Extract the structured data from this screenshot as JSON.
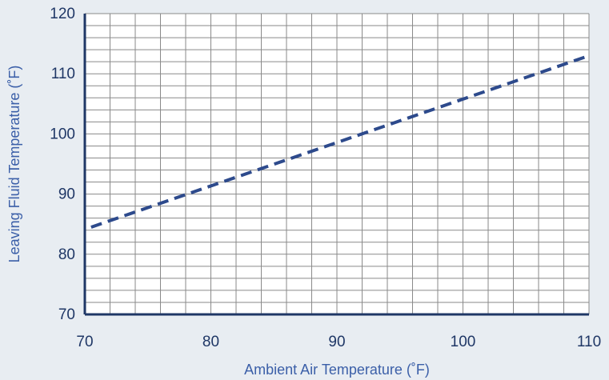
{
  "chart_data": {
    "type": "line",
    "xlabel": "Ambient Air Temperature (˚F)",
    "ylabel": "Leaving Fluid Temperature (˚F)",
    "xlim": [
      70,
      110
    ],
    "ylim": [
      70,
      120
    ],
    "x_ticks": [
      70,
      80,
      90,
      100,
      110
    ],
    "y_ticks": [
      70,
      80,
      90,
      100,
      110,
      120
    ],
    "x_ticks_text": [
      "70",
      "80",
      "90",
      "100",
      "110"
    ],
    "y_ticks_text": [
      "70",
      "80",
      "90",
      "100",
      "110",
      "120"
    ],
    "minor_grid_x_step": 2,
    "minor_grid_y_step": 2,
    "grid": true,
    "series": [
      {
        "x": [
          70.5,
          110
        ],
        "y": [
          84.5,
          113
        ],
        "style": "dashed",
        "color": "#2d4a8c"
      }
    ],
    "colors": {
      "background": "#e8edf2",
      "plot_area": "#ffffff",
      "grid": "#8a8a8a",
      "axis": "#1f3766",
      "line": "#2d4a8c"
    }
  }
}
